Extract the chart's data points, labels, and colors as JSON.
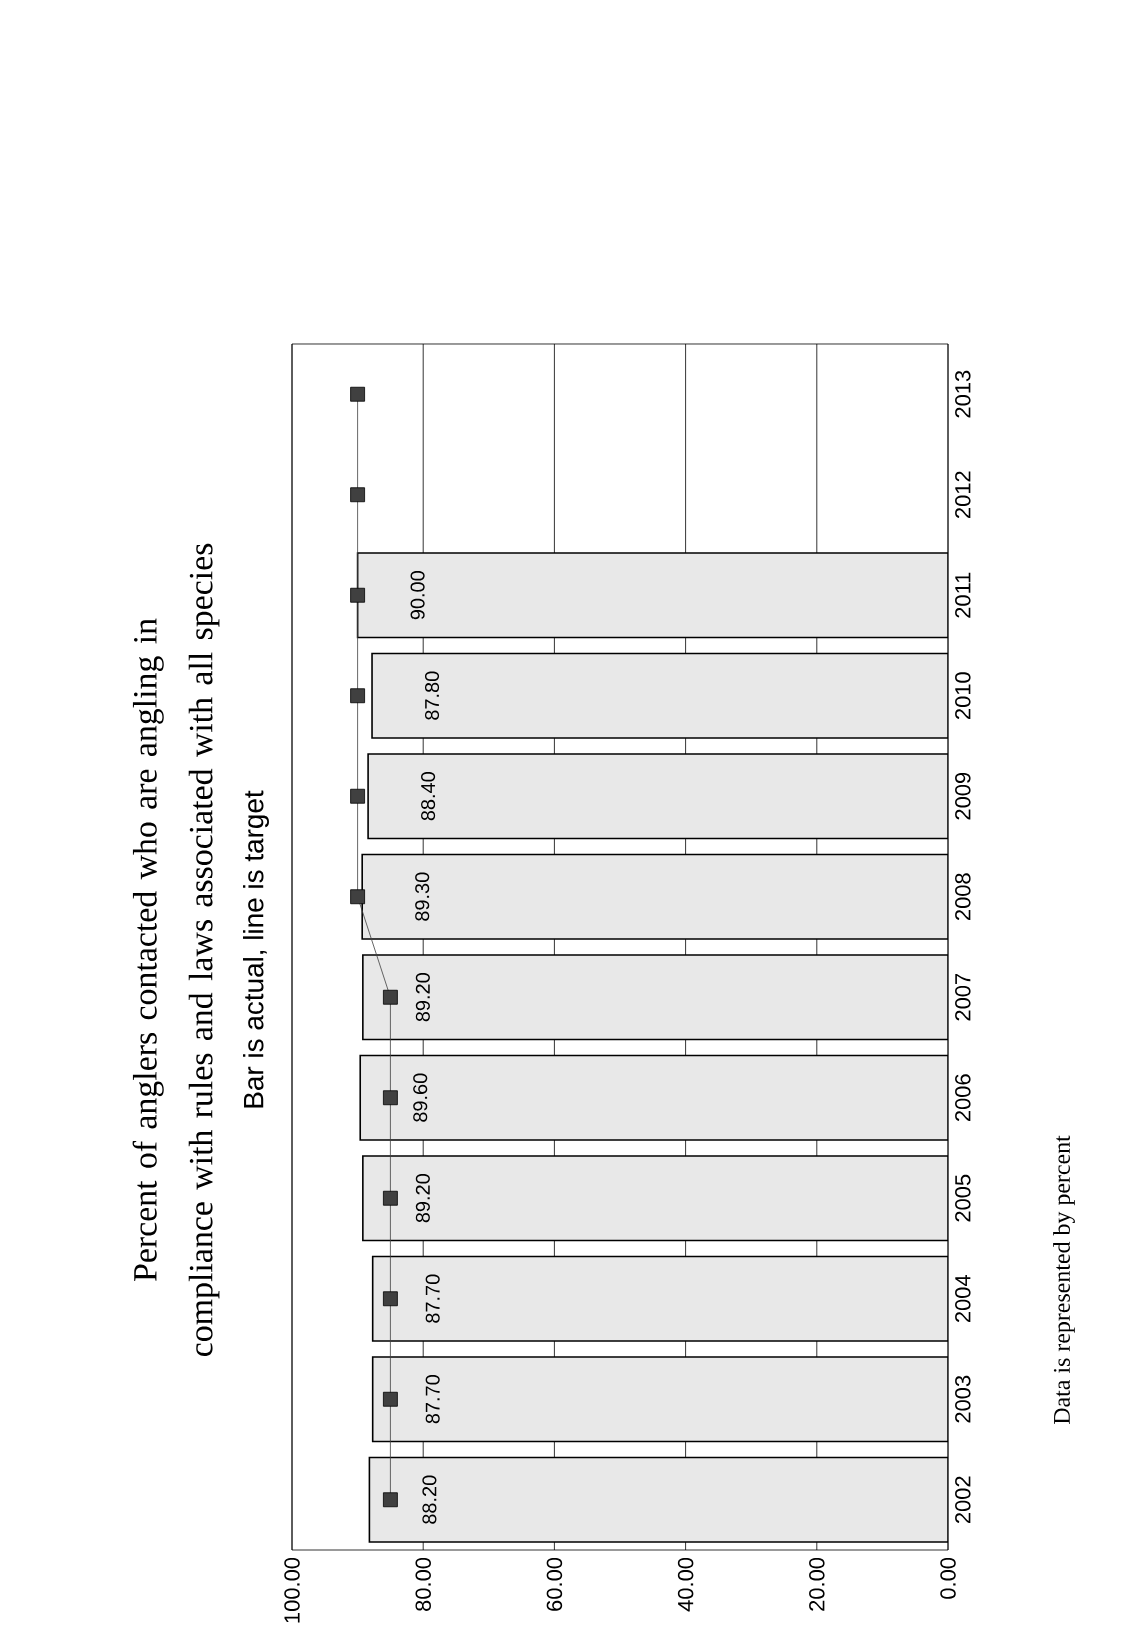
{
  "chart_data": {
    "type": "bar",
    "orientation": "horizontal",
    "title": "Percent of anglers contacted who are angling in compliance with rules and laws associated with all species",
    "subtitle": "Bar is actual, line is target",
    "ylabel": "Data is represented by percent",
    "categories": [
      "2013",
      "2012",
      "2011",
      "2010",
      "2009",
      "2008",
      "2007",
      "2006",
      "2005",
      "2004",
      "2003",
      "2002"
    ],
    "series": [
      {
        "color": "#e8e8e8",
        "values": [
          null,
          null,
          90.0,
          87.8,
          88.4,
          89.3,
          89.2,
          89.6,
          89.2,
          87.7,
          87.7,
          88.2
        ],
        "value_labels": [
          null,
          null,
          "90.00",
          "87.80",
          "88.40",
          "89.30",
          "89.20",
          "89.60",
          "89.20",
          "87.70",
          "87.70",
          "88.20"
        ]
      },
      {
        "type": "line",
        "color": "#404040",
        "marker": "square",
        "values": [
          90,
          90,
          90,
          90,
          90,
          90,
          85,
          85,
          85,
          85,
          85,
          85
        ]
      }
    ],
    "xlim": [
      100,
      0
    ],
    "xticks": [
      {
        "value": 0,
        "label": "0.00"
      },
      {
        "value": 20,
        "label": "20.00"
      },
      {
        "value": 40,
        "label": "40.00"
      },
      {
        "value": 60,
        "label": "60.00"
      },
      {
        "value": 80,
        "label": "80.00"
      },
      {
        "value": 100,
        "label": "100.00"
      }
    ],
    "grid": "x",
    "legend": false
  }
}
